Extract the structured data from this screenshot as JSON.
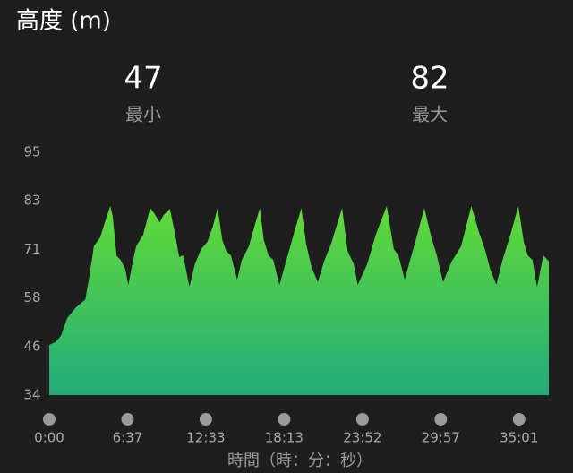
{
  "chart_data": {
    "type": "area",
    "title": "高度 (m)",
    "stats": [
      {
        "value": 47,
        "label": "最小"
      },
      {
        "value": 82,
        "label": "最大"
      }
    ],
    "x_label": "時間（時：分：秒）",
    "x": [
      0,
      0.08,
      0.15,
      0.23,
      0.34,
      0.46,
      0.51,
      0.57,
      0.65,
      0.72,
      0.78,
      0.81,
      0.86,
      0.91,
      0.97,
      1.01,
      1.06,
      1.11,
      1.2,
      1.29,
      1.34,
      1.41,
      1.46,
      1.54,
      1.6,
      1.66,
      1.71,
      1.79,
      1.86,
      1.94,
      2.02,
      2.09,
      2.15,
      2.21,
      2.26,
      2.32,
      2.4,
      2.46,
      2.55,
      2.63,
      2.69,
      2.74,
      2.8,
      2.86,
      2.94,
      3.03,
      3.12,
      3.22,
      3.28,
      3.35,
      3.43,
      3.51,
      3.6,
      3.74,
      3.81,
      3.89,
      3.94,
      4.06,
      4.17,
      4.31,
      4.4,
      4.46,
      4.54,
      4.61,
      4.69,
      4.79,
      4.88,
      4.95,
      5.03,
      5.14,
      5.26,
      5.39,
      5.49,
      5.57,
      5.63,
      5.71,
      5.79,
      5.89,
      5.99,
      6.06,
      6.11,
      6.17,
      6.23,
      6.31,
      6.38
    ],
    "values": [
      46.6,
      47.3,
      48.9,
      53.4,
      56,
      58,
      63.5,
      71.4,
      73.6,
      78,
      81.5,
      79,
      69,
      68,
      65.7,
      61.7,
      66.9,
      71.4,
      74.3,
      81,
      79.7,
      77.4,
      79.2,
      80.8,
      75.2,
      68.7,
      69.1,
      61.2,
      66.9,
      70.7,
      72.5,
      76.4,
      81,
      73,
      70.2,
      69.1,
      63,
      68,
      71.4,
      77,
      81,
      73,
      69.1,
      68,
      61.7,
      68,
      74.3,
      81,
      72,
      66.2,
      62.4,
      67.6,
      72,
      81,
      70.2,
      66.9,
      61.7,
      66.9,
      74.3,
      81.5,
      70.7,
      69.1,
      63,
      68,
      73.6,
      81,
      73.6,
      69.1,
      62.4,
      67.6,
      71.4,
      81.5,
      74.8,
      70.2,
      65.7,
      61.7,
      68,
      74.3,
      81.5,
      72.5,
      69.1,
      68,
      61.2,
      69.1,
      67.6
    ],
    "colors": [
      "#62da38",
      "#22ac7a"
    ],
    "xlim": [
      0,
      6.38
    ],
    "xticks": [
      {
        "value": 0,
        "label": "0:00"
      },
      {
        "value": 1,
        "label": "6:37"
      },
      {
        "value": 2,
        "label": "12:33"
      },
      {
        "value": 3,
        "label": "18:13"
      },
      {
        "value": 4,
        "label": "23:52"
      },
      {
        "value": 5,
        "label": "29:57"
      },
      {
        "value": 6,
        "label": "35:01"
      }
    ],
    "ylim": [
      34,
      95
    ],
    "yticks": [
      34,
      {
        "value": 46.2,
        "label": "46"
      },
      {
        "value": 58.4,
        "label": "58"
      },
      {
        "value": 70.6,
        "label": "71"
      },
      {
        "value": 82.8,
        "label": "83"
      },
      95
    ],
    "grid": false
  }
}
